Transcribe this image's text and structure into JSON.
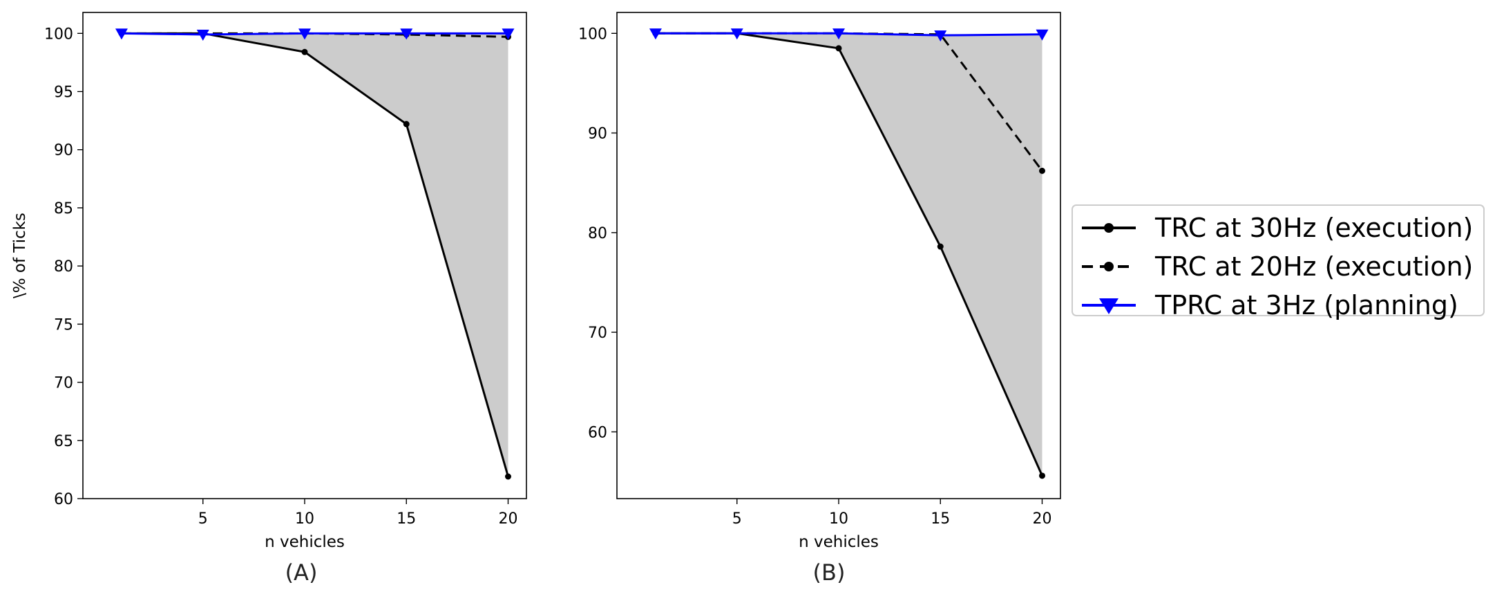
{
  "chart_data": [
    {
      "type": "line",
      "panel_label": "(A)",
      "xlabel": "n vehicles",
      "ylabel": "\\% of Ticks",
      "x": [
        1,
        5,
        10,
        15,
        20
      ],
      "xticks": [
        5,
        10,
        15,
        20
      ],
      "yticks": [
        60,
        65,
        70,
        75,
        80,
        85,
        90,
        95,
        100
      ],
      "xlim": [
        -0.9,
        20.9
      ],
      "ylim": [
        60,
        101.8
      ],
      "fill_between": [
        "TRC at 30Hz (execution)",
        "TPRC at 3Hz (planning)"
      ],
      "series": [
        {
          "name": "TRC at 30Hz (execution)",
          "values": [
            100,
            100,
            98.4,
            92.2,
            61.9
          ]
        },
        {
          "name": "TRC at 20Hz (execution)",
          "values": [
            100,
            100,
            100,
            99.9,
            99.7
          ]
        },
        {
          "name": "TPRC at 3Hz (planning)",
          "values": [
            100,
            99.9,
            100,
            100,
            100
          ]
        }
      ]
    },
    {
      "type": "line",
      "panel_label": "(B)",
      "xlabel": "n vehicles",
      "ylabel": "",
      "x": [
        1,
        5,
        10,
        15,
        20
      ],
      "xticks": [
        5,
        10,
        15,
        20
      ],
      "yticks": [
        60,
        70,
        80,
        90,
        100
      ],
      "xlim": [
        -0.9,
        20.9
      ],
      "ylim": [
        53.3,
        102.1
      ],
      "fill_between": [
        "TRC at 30Hz (execution)",
        "TPRC at 3Hz (planning)"
      ],
      "series": [
        {
          "name": "TRC at 30Hz (execution)",
          "values": [
            100,
            100,
            98.5,
            78.6,
            55.6
          ]
        },
        {
          "name": "TRC at 20Hz (execution)",
          "values": [
            100,
            100,
            100,
            99.9,
            86.2
          ]
        },
        {
          "name": "TPRC at 3Hz (planning)",
          "values": [
            100,
            100,
            100,
            99.8,
            99.9
          ]
        }
      ]
    }
  ],
  "legend": {
    "placement": "right",
    "items": [
      {
        "label": "TRC at 30Hz (execution)",
        "color": "#000000",
        "style": "solid",
        "marker": "circle"
      },
      {
        "label": "TRC at 20Hz (execution)",
        "color": "#000000",
        "style": "dashed",
        "marker": "circle"
      },
      {
        "label": "TPRC at 3Hz (planning)",
        "color": "#0000ff",
        "style": "solid",
        "marker": "triangle-down"
      }
    ]
  },
  "colors": {
    "fill": "#cccccc",
    "blue": "#0000ff",
    "black": "#000000"
  }
}
